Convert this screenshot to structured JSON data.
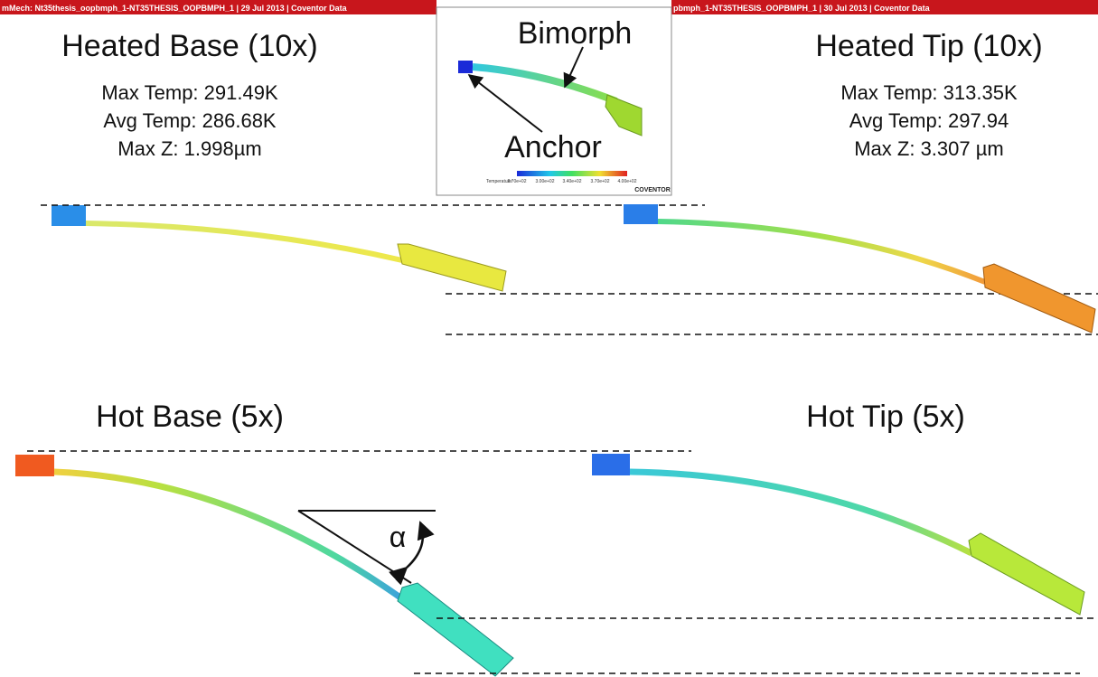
{
  "header_bars": [
    "mMech: Nt35thesis_oopbmph_1-NT35THESIS_OOPBMPH_1 | 29 Jul 2013 | Coventor Data",
    "pbmph_1-NT35THESIS_OOPBMPH_1 | 30 Jul 2013 | Coventor Data"
  ],
  "inset": {
    "bimorph": "Bimorph",
    "anchor": "Anchor",
    "legend_title": "Temperature:",
    "legend_ticks": [
      "2.70e+02",
      "3.00e+02",
      "3.40e+02",
      "3.70e+02",
      "4.00e+02"
    ],
    "brand": "COVENTOR"
  },
  "panels": [
    {
      "title": "Heated Base (10x)",
      "stats": [
        "Max Temp: 291.49K",
        "Avg Temp: 286.68K",
        "Max Z: 1.998µm"
      ]
    },
    {
      "title": "Heated Tip (10x)",
      "stats": [
        "Max Temp: 313.35K",
        "Avg Temp: 297.94",
        "Max Z: 3.307 µm"
      ]
    },
    {
      "title": "Hot Base (5x)",
      "stats": []
    },
    {
      "title": "Hot Tip (5x)",
      "stats": []
    }
  ],
  "angle_label": "α"
}
